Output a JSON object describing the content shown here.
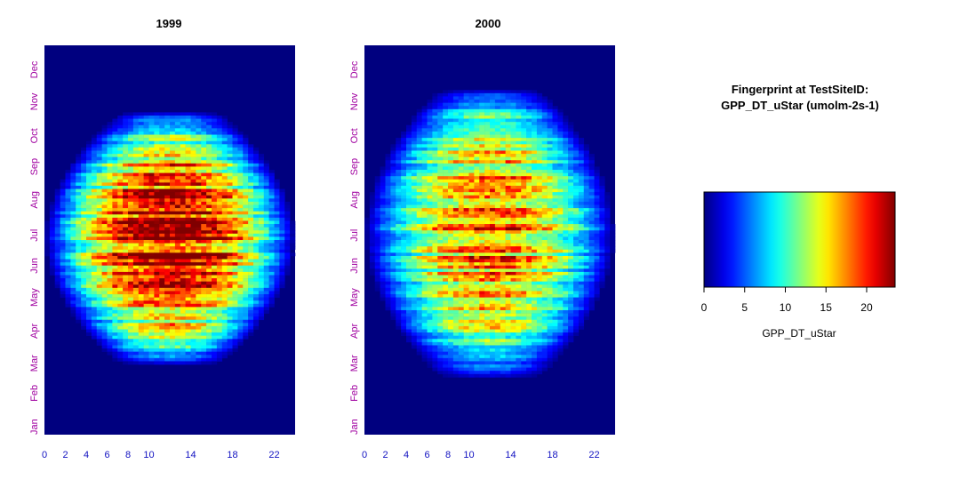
{
  "chart_data": [
    {
      "type": "heatmap",
      "title": "1999",
      "x_ticks": [
        0,
        2,
        4,
        6,
        8,
        10,
        14,
        18,
        22
      ],
      "y_ticks": [
        "Jan",
        "Feb",
        "Mar",
        "Apr",
        "May",
        "Jun",
        "Jul",
        "Aug",
        "Sep",
        "Oct",
        "Nov",
        "Dec"
      ],
      "xlim": [
        0,
        24
      ],
      "ylim": [
        1,
        366
      ],
      "peak_value": 22,
      "season_peak_day": 185,
      "season_half_width_days": 118
    },
    {
      "type": "heatmap",
      "title": "2000",
      "x_ticks": [
        0,
        2,
        4,
        6,
        8,
        10,
        14,
        18,
        22
      ],
      "y_ticks": [
        "Jan",
        "Feb",
        "Mar",
        "Apr",
        "May",
        "Jun",
        "Jul",
        "Aug",
        "Sep",
        "Oct",
        "Nov",
        "Dec"
      ],
      "xlim": [
        0,
        24
      ],
      "ylim": [
        1,
        366
      ],
      "peak_value": 18,
      "season_peak_day": 190,
      "season_half_width_days": 135
    }
  ],
  "legend": {
    "title_line1": "Fingerprint at TestSiteID:",
    "title_line2": "GPP_DT_uStar (umolm-2s-1)",
    "ticks": [
      0,
      5,
      10,
      15,
      20
    ],
    "range": [
      0,
      23.5
    ],
    "label": "GPP_DT_uStar"
  },
  "colors": {
    "background_low": "#00007f",
    "palette": "jet",
    "month_label": "#a000a0",
    "hour_label": "#1010c0"
  }
}
